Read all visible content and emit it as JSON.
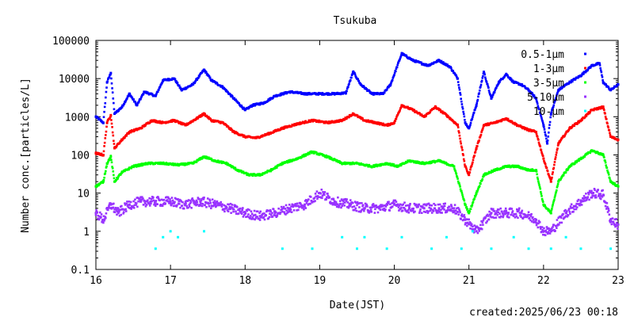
{
  "chart_data": {
    "type": "scatter",
    "title": "Tsukuba",
    "xlabel": "Date(JST)",
    "ylabel": "Number conc.[particles/L]",
    "footer": "created:2025/06/23 00:18",
    "y_scale": "log",
    "xlim": [
      16,
      23
    ],
    "ylim": [
      0.1,
      100000
    ],
    "x_ticks": [
      "16",
      "17",
      "18",
      "19",
      "20",
      "21",
      "22",
      "23"
    ],
    "y_ticks": [
      "0.1",
      "1",
      "10",
      "100",
      "1000",
      "10000",
      "100000"
    ],
    "grid": false,
    "legend_position": "top-right",
    "series": [
      {
        "name": "0.5-1μm",
        "color": "#0000ff",
        "points": [
          [
            16.0,
            1000
          ],
          [
            16.1,
            700
          ],
          [
            16.15,
            8000
          ],
          [
            16.2,
            14000
          ],
          [
            16.25,
            1200
          ],
          [
            16.35,
            1800
          ],
          [
            16.45,
            4000
          ],
          [
            16.55,
            2000
          ],
          [
            16.65,
            4500
          ],
          [
            16.8,
            3500
          ],
          [
            16.9,
            9000
          ],
          [
            17.05,
            10000
          ],
          [
            17.15,
            5000
          ],
          [
            17.3,
            7000
          ],
          [
            17.45,
            17000
          ],
          [
            17.55,
            9000
          ],
          [
            17.7,
            6000
          ],
          [
            17.85,
            3000
          ],
          [
            18.0,
            1500
          ],
          [
            18.1,
            2000
          ],
          [
            18.25,
            2300
          ],
          [
            18.4,
            3500
          ],
          [
            18.6,
            4500
          ],
          [
            18.8,
            4000
          ],
          [
            19.0,
            4000
          ],
          [
            19.2,
            4000
          ],
          [
            19.35,
            4200
          ],
          [
            19.45,
            15000
          ],
          [
            19.55,
            7000
          ],
          [
            19.7,
            4000
          ],
          [
            19.85,
            4000
          ],
          [
            19.95,
            7000
          ],
          [
            20.1,
            45000
          ],
          [
            20.25,
            30000
          ],
          [
            20.45,
            22000
          ],
          [
            20.6,
            30000
          ],
          [
            20.75,
            20000
          ],
          [
            20.85,
            10000
          ],
          [
            20.95,
            700
          ],
          [
            21.0,
            500
          ],
          [
            21.1,
            2000
          ],
          [
            21.2,
            15000
          ],
          [
            21.3,
            3000
          ],
          [
            21.4,
            8000
          ],
          [
            21.5,
            13000
          ],
          [
            21.6,
            8000
          ],
          [
            21.7,
            7000
          ],
          [
            21.8,
            5000
          ],
          [
            21.9,
            3000
          ],
          [
            22.0,
            600
          ],
          [
            22.05,
            200
          ],
          [
            22.1,
            1200
          ],
          [
            22.2,
            5000
          ],
          [
            22.35,
            8000
          ],
          [
            22.5,
            12000
          ],
          [
            22.65,
            22000
          ],
          [
            22.75,
            25000
          ],
          [
            22.8,
            8000
          ],
          [
            22.9,
            5000
          ],
          [
            23.0,
            7000
          ]
        ]
      },
      {
        "name": "1-3μm",
        "color": "#ff0000",
        "points": [
          [
            16.0,
            110
          ],
          [
            16.1,
            100
          ],
          [
            16.15,
            700
          ],
          [
            16.2,
            1100
          ],
          [
            16.25,
            150
          ],
          [
            16.35,
            250
          ],
          [
            16.45,
            400
          ],
          [
            16.6,
            500
          ],
          [
            16.75,
            800
          ],
          [
            16.9,
            700
          ],
          [
            17.05,
            800
          ],
          [
            17.2,
            600
          ],
          [
            17.35,
            900
          ],
          [
            17.45,
            1200
          ],
          [
            17.55,
            800
          ],
          [
            17.7,
            700
          ],
          [
            17.85,
            400
          ],
          [
            18.0,
            300
          ],
          [
            18.15,
            280
          ],
          [
            18.3,
            350
          ],
          [
            18.5,
            500
          ],
          [
            18.7,
            650
          ],
          [
            18.9,
            800
          ],
          [
            19.1,
            700
          ],
          [
            19.3,
            800
          ],
          [
            19.45,
            1200
          ],
          [
            19.6,
            800
          ],
          [
            19.75,
            700
          ],
          [
            19.9,
            600
          ],
          [
            20.0,
            700
          ],
          [
            20.1,
            2000
          ],
          [
            20.25,
            1500
          ],
          [
            20.4,
            1000
          ],
          [
            20.55,
            1800
          ],
          [
            20.7,
            1100
          ],
          [
            20.85,
            600
          ],
          [
            20.95,
            50
          ],
          [
            21.0,
            30
          ],
          [
            21.1,
            150
          ],
          [
            21.2,
            600
          ],
          [
            21.35,
            700
          ],
          [
            21.5,
            900
          ],
          [
            21.65,
            600
          ],
          [
            21.8,
            450
          ],
          [
            21.9,
            400
          ],
          [
            22.0,
            80
          ],
          [
            22.1,
            20
          ],
          [
            22.2,
            200
          ],
          [
            22.35,
            500
          ],
          [
            22.5,
            800
          ],
          [
            22.65,
            1500
          ],
          [
            22.8,
            1800
          ],
          [
            22.9,
            300
          ],
          [
            23.0,
            250
          ]
        ]
      },
      {
        "name": "3-5μm",
        "color": "#00ff00",
        "points": [
          [
            16.0,
            15
          ],
          [
            16.1,
            20
          ],
          [
            16.15,
            60
          ],
          [
            16.2,
            90
          ],
          [
            16.25,
            20
          ],
          [
            16.35,
            35
          ],
          [
            16.5,
            50
          ],
          [
            16.7,
            60
          ],
          [
            16.9,
            60
          ],
          [
            17.1,
            55
          ],
          [
            17.3,
            60
          ],
          [
            17.45,
            90
          ],
          [
            17.6,
            70
          ],
          [
            17.75,
            60
          ],
          [
            17.9,
            40
          ],
          [
            18.05,
            30
          ],
          [
            18.2,
            30
          ],
          [
            18.35,
            40
          ],
          [
            18.5,
            60
          ],
          [
            18.7,
            80
          ],
          [
            18.9,
            120
          ],
          [
            19.1,
            90
          ],
          [
            19.3,
            60
          ],
          [
            19.5,
            60
          ],
          [
            19.7,
            50
          ],
          [
            19.9,
            60
          ],
          [
            20.05,
            50
          ],
          [
            20.2,
            70
          ],
          [
            20.4,
            60
          ],
          [
            20.6,
            70
          ],
          [
            20.8,
            50
          ],
          [
            20.95,
            5
          ],
          [
            21.0,
            3
          ],
          [
            21.1,
            10
          ],
          [
            21.2,
            30
          ],
          [
            21.35,
            40
          ],
          [
            21.5,
            50
          ],
          [
            21.65,
            50
          ],
          [
            21.8,
            40
          ],
          [
            21.9,
            40
          ],
          [
            22.0,
            5
          ],
          [
            22.1,
            3
          ],
          [
            22.2,
            20
          ],
          [
            22.35,
            50
          ],
          [
            22.5,
            80
          ],
          [
            22.65,
            130
          ],
          [
            22.8,
            100
          ],
          [
            22.9,
            20
          ],
          [
            23.0,
            15
          ]
        ]
      },
      {
        "name": "5-10μm",
        "color": "#9933ff",
        "points": [
          [
            16.0,
            3
          ],
          [
            16.1,
            2
          ],
          [
            16.2,
            5
          ],
          [
            16.3,
            3
          ],
          [
            16.45,
            5
          ],
          [
            16.6,
            6
          ],
          [
            16.8,
            6
          ],
          [
            17.0,
            6
          ],
          [
            17.2,
            5
          ],
          [
            17.4,
            6
          ],
          [
            17.6,
            5
          ],
          [
            17.8,
            4
          ],
          [
            18.0,
            3
          ],
          [
            18.2,
            2.5
          ],
          [
            18.4,
            3
          ],
          [
            18.6,
            4
          ],
          [
            18.8,
            5
          ],
          [
            19.0,
            10
          ],
          [
            19.2,
            6
          ],
          [
            19.4,
            5
          ],
          [
            19.6,
            4
          ],
          [
            19.8,
            4
          ],
          [
            20.0,
            5
          ],
          [
            20.2,
            4
          ],
          [
            20.4,
            4
          ],
          [
            20.6,
            4
          ],
          [
            20.8,
            4
          ],
          [
            20.95,
            2
          ],
          [
            21.1,
            1
          ],
          [
            21.3,
            3
          ],
          [
            21.5,
            3
          ],
          [
            21.7,
            3
          ],
          [
            21.9,
            2
          ],
          [
            22.0,
            1
          ],
          [
            22.1,
            1
          ],
          [
            22.3,
            3
          ],
          [
            22.5,
            6
          ],
          [
            22.65,
            10
          ],
          [
            22.8,
            9
          ],
          [
            22.9,
            2
          ],
          [
            23.0,
            1.5
          ]
        ]
      },
      {
        "name": "10-μm",
        "color": "#00ffff",
        "points": [
          [
            16.9,
            0.7
          ],
          [
            17.0,
            1
          ],
          [
            16.8,
            0.35
          ],
          [
            17.1,
            0.7
          ],
          [
            17.45,
            1
          ],
          [
            18.5,
            0.35
          ],
          [
            18.9,
            0.35
          ],
          [
            19.3,
            0.7
          ],
          [
            19.5,
            0.35
          ],
          [
            19.6,
            0.7
          ],
          [
            19.9,
            0.35
          ],
          [
            20.1,
            0.7
          ],
          [
            20.5,
            0.35
          ],
          [
            20.7,
            0.7
          ],
          [
            20.9,
            0.35
          ],
          [
            21.05,
            1
          ],
          [
            21.3,
            0.35
          ],
          [
            21.6,
            0.7
          ],
          [
            21.8,
            0.35
          ],
          [
            22.1,
            0.35
          ],
          [
            22.3,
            0.7
          ],
          [
            22.5,
            0.35
          ],
          [
            22.9,
            0.35
          ]
        ]
      }
    ]
  }
}
